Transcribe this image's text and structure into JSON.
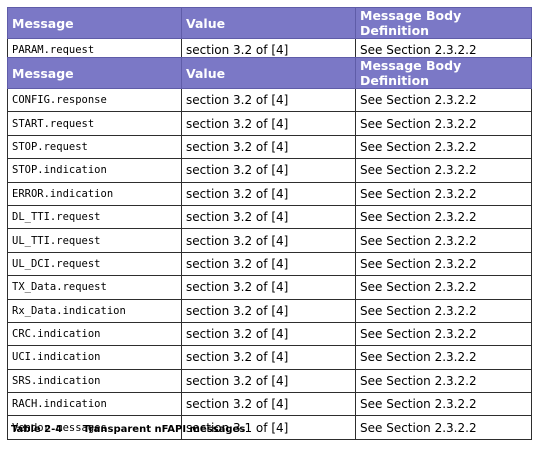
{
  "table1": {
    "headers": [
      "Message",
      "Value",
      "Message Body Definition"
    ],
    "rows": [
      [
        "PARAM.request",
        "section 3.2 of [4]",
        "See Section 2.3.2.2"
      ]
    ]
  },
  "table2": {
    "headers": [
      "Message",
      "Value",
      "Message Body Definition"
    ],
    "rows": [
      [
        "CONFIG.response",
        "section 3.2 of [4]",
        "See Section 2.3.2.2"
      ],
      [
        "START.request",
        "section 3.2 of [4]",
        "See Section 2.3.2.2"
      ],
      [
        "STOP.request",
        "section 3.2 of [4]",
        "See Section 2.3.2.2"
      ],
      [
        "STOP.indication",
        "section 3.2 of [4]",
        "See Section 2.3.2.2"
      ],
      [
        "ERROR.indication",
        "section 3.2 of [4]",
        "See Section 2.3.2.2"
      ],
      [
        "DL_TTI.request",
        "section 3.2 of [4]",
        "See Section 2.3.2.2"
      ],
      [
        "UL_TTI.request",
        "section 3.2 of [4]",
        "See Section 2.3.2.2"
      ],
      [
        "UL_DCI.request",
        "section 3.2 of [4]",
        "See Section 2.3.2.2"
      ],
      [
        "TX_Data.request",
        "section 3.2 of [4]",
        "See Section 2.3.2.2"
      ],
      [
        "Rx_Data.indication",
        "section 3.2 of [4]",
        "See Section 2.3.2.2"
      ],
      [
        "CRC.indication",
        "section 3.2 of [4]",
        "See Section 2.3.2.2"
      ],
      [
        "UCI.indication",
        "section 3.2 of [4]",
        "See Section 2.3.2.2"
      ],
      [
        "SRS.indication",
        "section 3.2 of [4]",
        "See Section 2.3.2.2"
      ],
      [
        "RACH.indication",
        "section 3.2 of [4]",
        "See Section 2.3.2.2"
      ],
      [
        "Vendor messages",
        "section 3.1 of [4]",
        "See Section 2.3.2.2"
      ]
    ]
  },
  "caption": {
    "number": "Table 2-4",
    "title": "Transparent nFAPI messages"
  },
  "colors": {
    "header_bg": "#7b78c6",
    "header_text": "#ffffff",
    "border": "#2e2e2e"
  }
}
